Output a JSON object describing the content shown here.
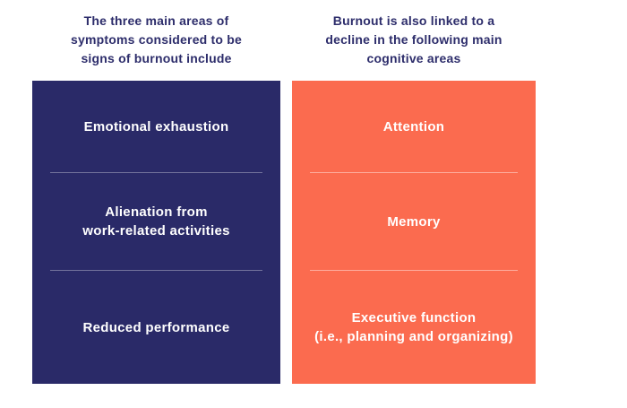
{
  "colors": {
    "background": "#ffffff",
    "navy_panel": "#2A2A68",
    "orange_panel": "#FB6B4F",
    "heading_text": "#2D2D6B",
    "panel_text": "#FFFFFF"
  },
  "panels": [
    {
      "id": "burnout-symptoms",
      "heading_lines": [
        "The three main areas of",
        "symptoms considered to be",
        "signs of burnout include"
      ],
      "items": [
        {
          "lines": [
            "Emotional exhaustion"
          ]
        },
        {
          "lines": [
            "Alienation from",
            "work-related activities"
          ]
        },
        {
          "lines": [
            "Reduced performance"
          ]
        }
      ]
    },
    {
      "id": "cognitive-areas",
      "heading_lines": [
        "Burnout is also linked to a",
        "decline in the following main",
        "cognitive areas"
      ],
      "items": [
        {
          "lines": [
            "Attention"
          ]
        },
        {
          "lines": [
            "Memory"
          ]
        },
        {
          "lines": [
            "Executive function",
            "(i.e., planning and organizing)"
          ]
        }
      ]
    }
  ]
}
